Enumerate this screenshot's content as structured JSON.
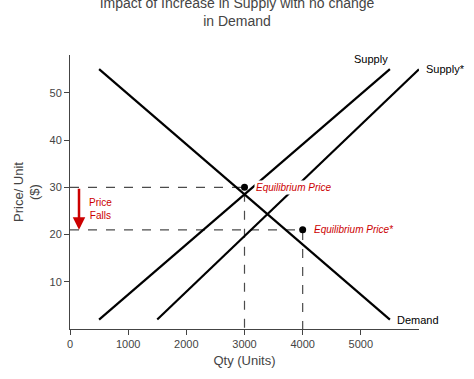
{
  "chart_data": {
    "type": "line",
    "title": "Impact of Increase in Supply with no change\nin Demand",
    "x_label": "Qty (Units)",
    "y_label": "Price/ Unit\n($)",
    "xlim": [
      0,
      6000
    ],
    "ylim": [
      0,
      58
    ],
    "xticks": [
      0,
      1000,
      2000,
      3000,
      4000,
      5000
    ],
    "yticks": [
      10,
      20,
      30,
      40,
      50
    ],
    "grid": false,
    "series": [
      {
        "name": "Demand",
        "x": [
          500,
          5500
        ],
        "values": [
          55,
          2
        ],
        "color": "#000000"
      },
      {
        "name": "Supply",
        "x": [
          500,
          5500
        ],
        "values": [
          2,
          55
        ],
        "color": "#000000"
      },
      {
        "name": "Supply*",
        "x": [
          1500,
          6000
        ],
        "values": [
          2,
          55
        ],
        "color": "#000000"
      },
      {
        "type": "scatter",
        "marker": "circle",
        "line_style": "dashed",
        "x": [
          3000,
          4000
        ],
        "values": [
          30,
          21
        ],
        "color": "#000000"
      }
    ],
    "annotations": [
      {
        "text": "Equilibrium Price",
        "x": 3000,
        "y": 30,
        "color": "#CC0000"
      },
      {
        "text": "Equilibrium Price*",
        "x": 4000,
        "y": 21,
        "color": "#CC0000"
      },
      {
        "text": "Price\nFalls",
        "color": "#CC0000"
      }
    ]
  }
}
